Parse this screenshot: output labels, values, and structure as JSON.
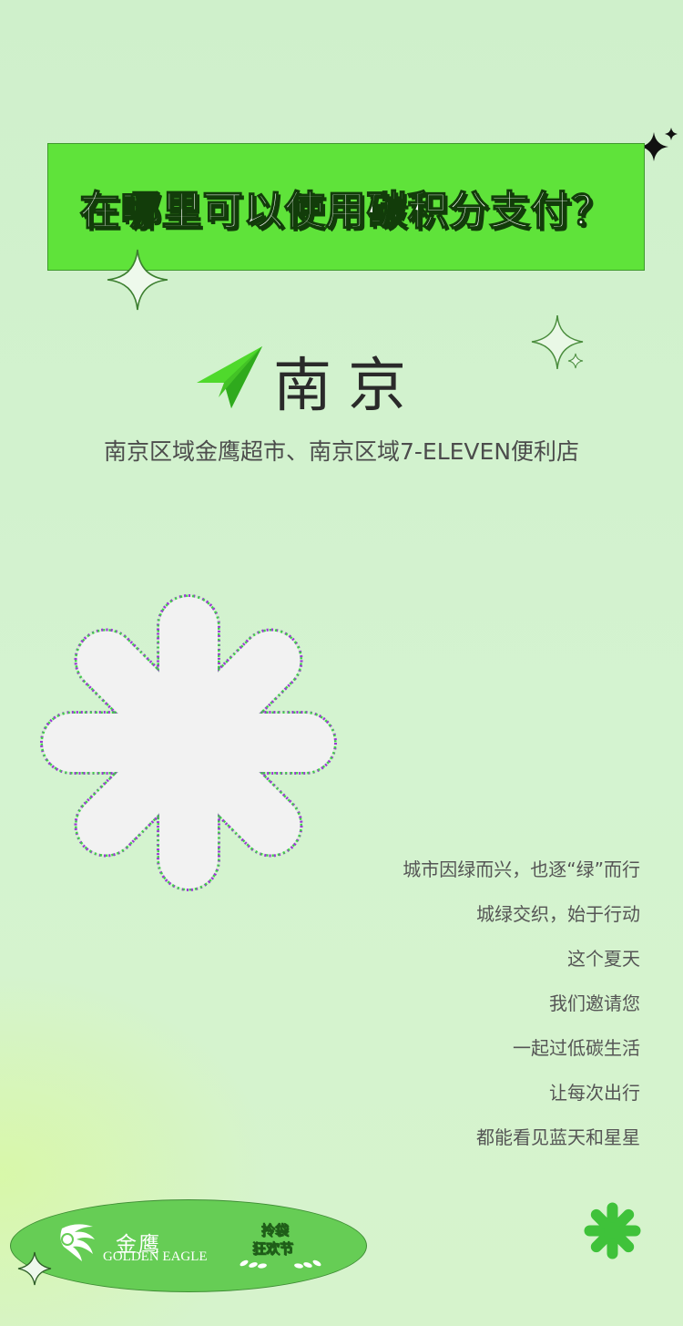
{
  "header": {
    "title": "在哪里可以使用碳积分支付？"
  },
  "city": {
    "name": "南京",
    "locations": "南京区域金鹰超市、南京区域7-ELEVEN便利店"
  },
  "poem": {
    "lines": [
      "城市因绿而兴，也逐“绿”而行",
      "城绿交织，始于行动",
      "这个夏天",
      "我们邀请您",
      "一起过低碳生活",
      "让每次出行",
      "都能看见蓝天和星星"
    ]
  },
  "footer": {
    "brand_cn": "金鹰",
    "brand_en": "GOLDEN EAGLE",
    "event_line1": "拎袋",
    "event_line2": "狂欢节"
  },
  "colors": {
    "background": "#d3f2cf",
    "accent_green": "#5fe33a",
    "flower_white": "#f2f2f2",
    "logo_green": "#66cd55"
  },
  "icons": {
    "paper_plane": "paper-plane-icon",
    "sparkle": "sparkle-icon",
    "flower": "flower-icon",
    "brand_logo": "golden-eagle-logo-icon"
  }
}
